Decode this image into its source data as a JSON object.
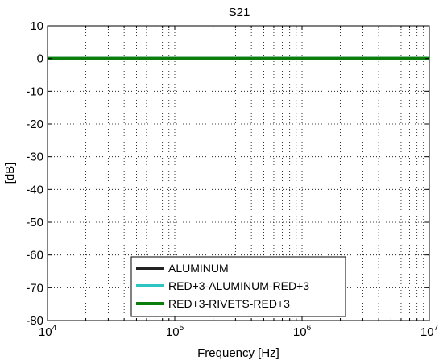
{
  "chart_data": {
    "type": "line",
    "title": "S21",
    "xlabel": "Frequency [Hz]",
    "ylabel": "[dB]",
    "xscale": "log",
    "xlim": [
      10000,
      10000000
    ],
    "ylim": [
      -80,
      10
    ],
    "x_ticks": [
      {
        "value": 10000,
        "base": "10",
        "exp": "4"
      },
      {
        "value": 100000,
        "base": "10",
        "exp": "5"
      },
      {
        "value": 1000000,
        "base": "10",
        "exp": "6"
      },
      {
        "value": 10000000,
        "base": "10",
        "exp": "7"
      }
    ],
    "y_ticks": [
      10,
      0,
      -10,
      -20,
      -30,
      -40,
      -50,
      -60,
      -70,
      -80
    ],
    "grid": true,
    "legend_position": "bottom-center",
    "series": [
      {
        "name": "ALUMINUM",
        "color": "#222222",
        "x": [
          10000,
          10000000
        ],
        "y": [
          0,
          0
        ]
      },
      {
        "name": "RED+3-ALUMINUM-RED+3",
        "color": "#2ec4c4",
        "x": [
          10000,
          10000000
        ],
        "y": [
          0,
          0
        ]
      },
      {
        "name": "RED+3-RIVETS-RED+3",
        "color": "#0a7d0a",
        "x": [
          10000,
          10000000
        ],
        "y": [
          0,
          0
        ]
      }
    ]
  }
}
